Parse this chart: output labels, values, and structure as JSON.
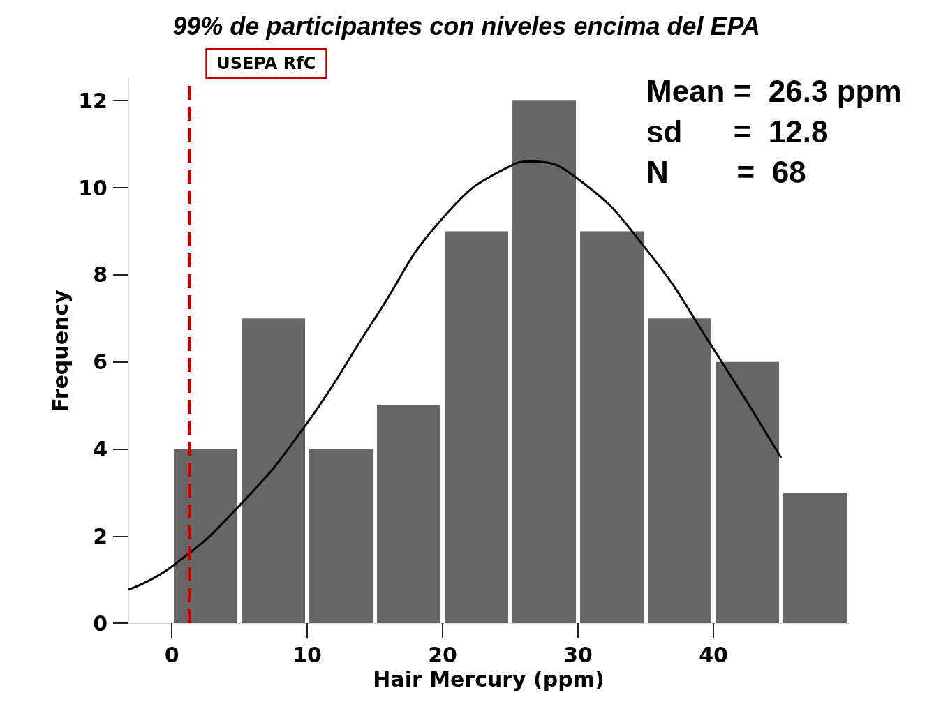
{
  "chart_data": {
    "type": "histogram",
    "title": "99% de participantes con niveles encima del EPA",
    "xlabel": "Hair Mercury (ppm)",
    "ylabel": "Frequency",
    "bins": [
      0,
      5,
      10,
      15,
      20,
      25,
      30,
      35,
      40,
      45,
      50
    ],
    "values": [
      4,
      7,
      4,
      5,
      9,
      12,
      9,
      7,
      6,
      3
    ],
    "color": "#666666",
    "series": [
      {
        "type": "line",
        "color": "#000000",
        "x": [
          -3.2,
          0,
          5,
          10,
          15,
          20,
          25,
          26.5,
          30,
          35,
          40,
          45
        ],
        "values": [
          0.77,
          1.3,
          2.7,
          4.6,
          7.0,
          9.3,
          10.5,
          10.6,
          10.2,
          8.6,
          6.3,
          3.8
        ]
      }
    ],
    "xlim": [
      -3.2,
      50
    ],
    "xticks": [
      0,
      10,
      20,
      30,
      40
    ],
    "ylim": [
      0,
      12.5
    ],
    "yticks": [
      0,
      2,
      4,
      6,
      8,
      10,
      12
    ],
    "ref_lines": [
      {
        "axis": "x",
        "value": 1.3,
        "label": "USEPA RfC",
        "color": "#c00000",
        "line_style": "dashed"
      }
    ],
    "annotations": [
      "Mean =  26.3 ppm",
      "sd      =  12.8",
      "N        =  68"
    ],
    "grid": false
  }
}
